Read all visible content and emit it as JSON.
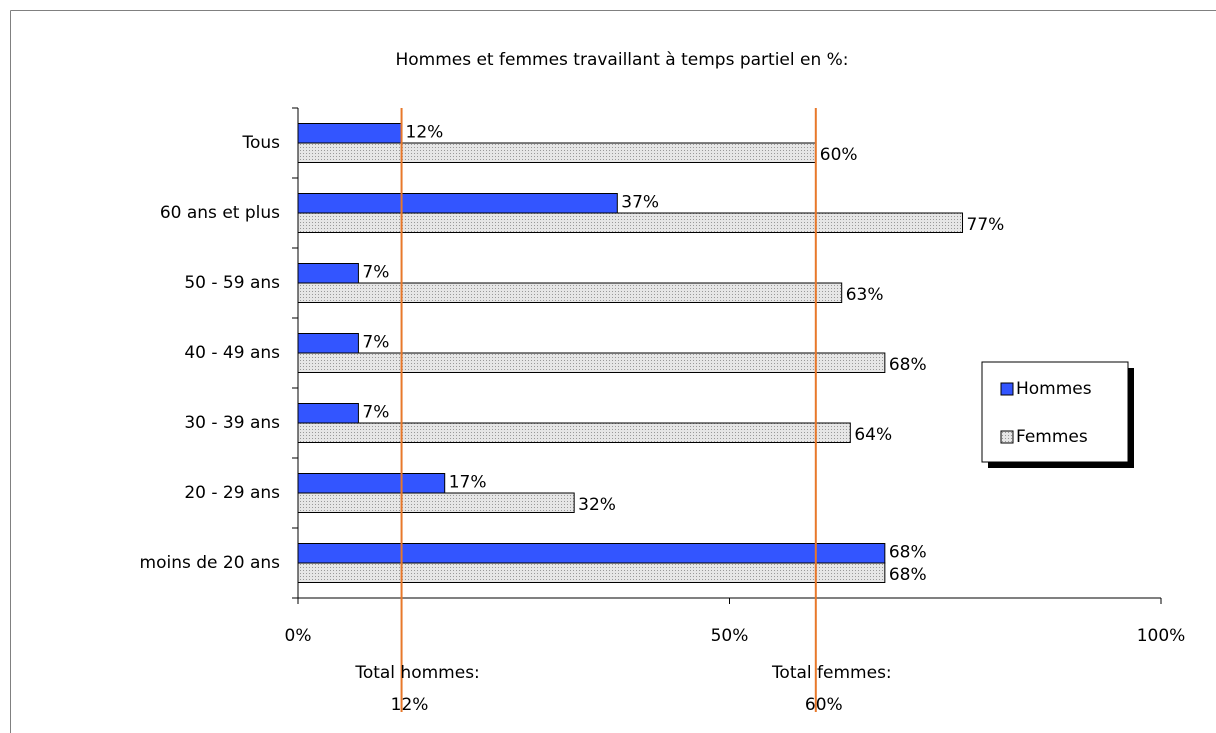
{
  "chart_data": {
    "type": "bar",
    "orientation": "horizontal",
    "title": "Hommes et femmes travaillant à temps partiel en %:",
    "categories": [
      "Tous",
      "60 ans et plus",
      "50 - 59 ans",
      "40 - 49 ans",
      "30 - 39 ans",
      "20 - 29 ans",
      "moins de 20 ans"
    ],
    "series": [
      {
        "name": "Hommes",
        "color": "#3355ff",
        "values": [
          12,
          37,
          7,
          7,
          7,
          17,
          68
        ],
        "value_labels": [
          "12%",
          "37%",
          "7%",
          "7%",
          "7%",
          "17%",
          "68%"
        ]
      },
      {
        "name": "Femmes",
        "color": "#d9d9d9",
        "values": [
          60,
          77,
          63,
          68,
          64,
          32,
          68
        ],
        "value_labels": [
          "60%",
          "77%",
          "63%",
          "68%",
          "64%",
          "32%",
          "68%"
        ]
      }
    ],
    "xlim": [
      0,
      100
    ],
    "xticks": [
      {
        "value": 0,
        "label": "0%"
      },
      {
        "value": 50,
        "label": "50%"
      },
      {
        "value": 100,
        "label": "100%"
      }
    ],
    "reference_lines": [
      {
        "value": 12,
        "label": "Total hommes:",
        "value_label": "12%",
        "color": "#e8782a"
      },
      {
        "value": 60,
        "label": "Total femmes:",
        "value_label": "60%",
        "color": "#e8782a"
      }
    ],
    "legend": "right"
  }
}
